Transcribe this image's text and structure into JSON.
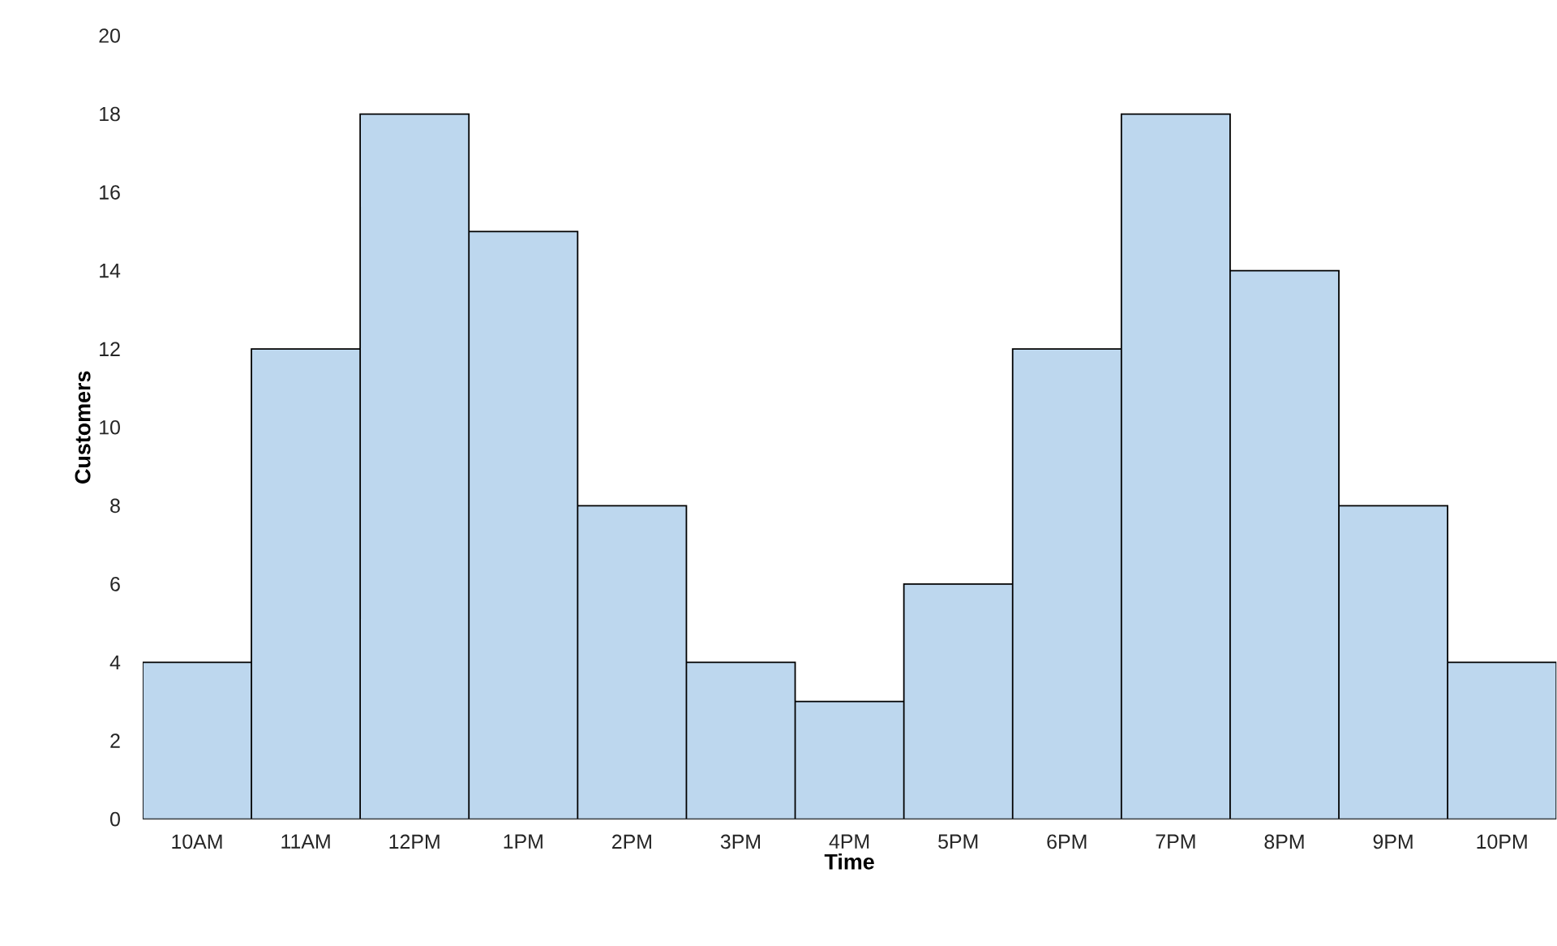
{
  "chart_data": {
    "type": "bar",
    "xlabel": "Time",
    "ylabel": "Customers",
    "categories": [
      "10AM",
      "11AM",
      "12PM",
      "1PM",
      "2PM",
      "3PM",
      "4PM",
      "5PM",
      "6PM",
      "7PM",
      "8PM",
      "9PM",
      "10PM"
    ],
    "values": [
      4,
      12,
      18,
      15,
      8,
      4,
      3,
      6,
      12,
      18,
      14,
      8,
      4
    ],
    "color": "#bdd7ee",
    "ylim": [
      0,
      20
    ],
    "yticks": [
      0,
      2,
      4,
      6,
      8,
      10,
      12,
      14,
      16,
      18,
      20
    ]
  }
}
